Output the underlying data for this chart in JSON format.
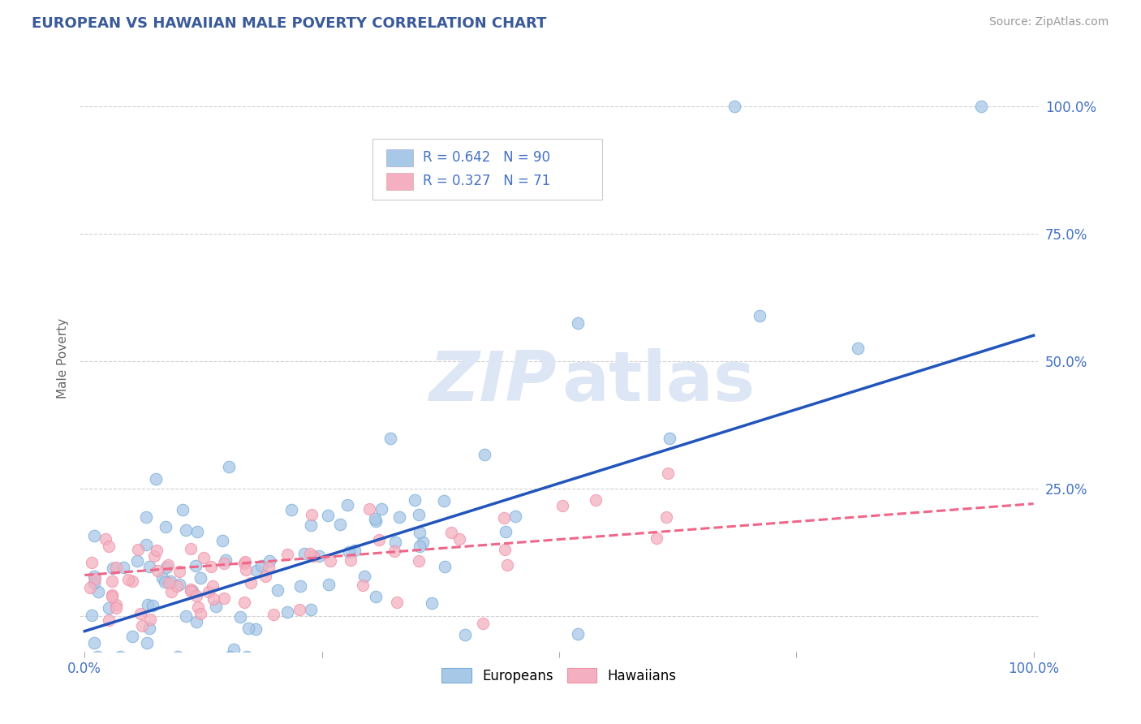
{
  "title": "EUROPEAN VS HAWAIIAN MALE POVERTY CORRELATION CHART",
  "source": "Source: ZipAtlas.com",
  "ylabel": "Male Poverty",
  "european_R": 0.642,
  "european_N": 90,
  "hawaiian_R": 0.327,
  "hawaiian_N": 71,
  "european_fill": "#a8c8e8",
  "hawaiian_fill": "#f4b0c0",
  "european_edge": "#7aaed8",
  "hawaiian_edge": "#f090a8",
  "trend_blue": "#2255bb",
  "trend_pink": "#ee6688",
  "bg_color": "#ffffff",
  "grid_color": "#cccccc",
  "title_color": "#3a5a9a",
  "watermark_color": "#dde6f4",
  "right_tick_color": "#4472c4",
  "legend_text_color": "#4472c4",
  "axis_text_color": "#4472c4"
}
